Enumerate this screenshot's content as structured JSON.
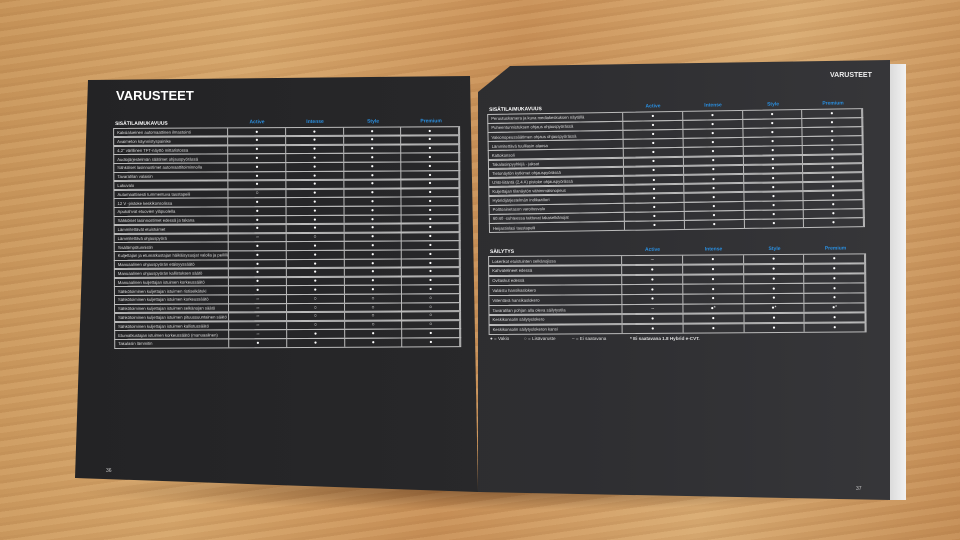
{
  "left_page": {
    "title": "VARUSTEET",
    "page_number": "36",
    "table": {
      "section": "SISÄTILA/MUKAVUUS",
      "columns": [
        "Active",
        "Intense",
        "Style",
        "Premium"
      ],
      "rows": [
        {
          "label": "Kaksialueinen automaattinen ilmastointi",
          "values": [
            "●",
            "●",
            "●",
            "●"
          ]
        },
        {
          "label": "Avaimeton käynnistyspainike",
          "values": [
            "●",
            "●",
            "●",
            "●"
          ]
        },
        {
          "label": "4,2\" värillinen TFT-näyttö mittaristossa",
          "values": [
            "●",
            "●",
            "●",
            "●"
          ]
        },
        {
          "label": "Audiojärjestelmän säätimet ohjauspyörässä",
          "values": [
            "●",
            "●",
            "●",
            "●"
          ]
        },
        {
          "label": "Sähköiset lasinnostimet automaattitoiminnolla",
          "values": [
            "●",
            "●",
            "●",
            "●"
          ]
        },
        {
          "label": "Tavaratilan valaisin",
          "values": [
            "●",
            "●",
            "●",
            "●"
          ]
        },
        {
          "label": "Lukuvalo",
          "values": [
            "●",
            "●",
            "●",
            "●"
          ]
        },
        {
          "label": "Automaattisesti tummentuva taustapeili",
          "values": [
            "○",
            "●",
            "●",
            "●"
          ]
        },
        {
          "label": "12 V -pistoke keskikonsolissa",
          "values": [
            "●",
            "●",
            "●",
            "●"
          ]
        },
        {
          "label": "Apukahvat etuovien yläpuolella",
          "values": [
            "●",
            "●",
            "●",
            "●"
          ]
        },
        {
          "label": "Sähköiset lasinnostimet edessä ja takana",
          "values": [
            "●",
            "●",
            "●",
            "●"
          ]
        },
        {
          "label": "Lämmitettävät etuistuimet",
          "values": [
            "●",
            "●",
            "●",
            "●"
          ]
        },
        {
          "label": "Lämmitettävä ohjauspyörä",
          "values": [
            "–",
            "○",
            "●",
            "●"
          ]
        },
        {
          "label": "Sisälämpötunnistin",
          "values": [
            "●",
            "●",
            "●",
            "●"
          ]
        },
        {
          "label": "Kuljettajan ja etumatkustajan häikäisysuojat valolla ja peilillä",
          "values": [
            "●",
            "●",
            "●",
            "●"
          ]
        },
        {
          "label": "Manuaalinen ohjauspyörän etäisyyssäätö",
          "values": [
            "●",
            "●",
            "●",
            "●"
          ]
        },
        {
          "label": "Manuaalinen ohjauspyörän kallistuksen säätö",
          "values": [
            "●",
            "●",
            "●",
            "●"
          ]
        },
        {
          "label": "Manuaalinen kuljettajan istuimen korkeussäätö",
          "values": [
            "●",
            "●",
            "●",
            "●"
          ]
        },
        {
          "label": "Sähkötoiminen kuljettajan istuimen ristiselkätuki",
          "values": [
            "●",
            "●",
            "●",
            "●"
          ]
        },
        {
          "label": "Sähkötoiminen kuljettajan istuimen korkeussäätö",
          "values": [
            "–",
            "○",
            "○",
            "○"
          ]
        },
        {
          "label": "Sähkötoiminen kuljettajan istuimen selkänojan säätö",
          "values": [
            "–",
            "○",
            "○",
            "○"
          ]
        },
        {
          "label": "Sähkötoiminen kuljettajan istuimen pituussuuntainen säätö",
          "values": [
            "–",
            "○",
            "○",
            "○"
          ]
        },
        {
          "label": "Sähkötoiminen kuljettajan istuimen kallistussäätö",
          "values": [
            "–",
            "○",
            "○",
            "○"
          ]
        },
        {
          "label": "Etumatkustajan istuimen korkeussäätö (manuaalinen)",
          "values": [
            "–",
            "●",
            "●",
            "●"
          ]
        },
        {
          "label": "Takalasin lämmitin",
          "values": [
            "●",
            "●",
            "●",
            "●"
          ]
        }
      ]
    }
  },
  "right_page": {
    "title": "VARUSTEET",
    "page_number": "37",
    "table1": {
      "section": "SISÄTILA/MUKAVUUS",
      "columns": [
        "Active",
        "Intense",
        "Style",
        "Premium"
      ],
      "rows": [
        {
          "label": "Peruutuskamera ja kuva mediakeskuksen näytöllä",
          "values": [
            "●",
            "●",
            "●",
            "●"
          ]
        },
        {
          "label": "Puheentunnistuksen ohjaus ohjauspyörässä",
          "values": [
            "●",
            "●",
            "●",
            "●"
          ]
        },
        {
          "label": "Vakionopeussäätimen ohjaus ohjauspyörässä",
          "values": [
            "●",
            "●",
            "●",
            "●"
          ]
        },
        {
          "label": "Lämmitettävä tuulilasin alaosa",
          "values": [
            "●",
            "●",
            "●",
            "●"
          ]
        },
        {
          "label": "Kattokonsoli",
          "values": [
            "●",
            "●",
            "●",
            "●"
          ]
        },
        {
          "label": "Takalasinpyyhkijä - jaksot",
          "values": [
            "●",
            "●",
            "●",
            "●"
          ]
        },
        {
          "label": "Tietonäytön kytkimet ohjauspyörässä",
          "values": [
            "●",
            "●",
            "●",
            "●"
          ]
        },
        {
          "label": "USB-liitäntä (2,4 A) pistoke ohjauspyörässä",
          "values": [
            "●",
            "●",
            "●",
            "●"
          ]
        },
        {
          "label": "Kuljettajan tilanäytön vähimmäisnopeus",
          "values": [
            "●",
            "●",
            "●",
            "●"
          ]
        },
        {
          "label": "Hybridijärjestelmän indikaattori",
          "values": [
            "●",
            "●",
            "●",
            "●"
          ]
        },
        {
          "label": "Polttoainetason varoitusvalo",
          "values": [
            "●",
            "●",
            "●",
            "●"
          ]
        },
        {
          "label": "60:40 -suhteessa taittuvat takaselkänojat",
          "values": [
            "●",
            "●",
            "●",
            "●"
          ]
        },
        {
          "label": "Heijastinlasi taustapeili",
          "values": [
            "●",
            "●",
            "●",
            "●"
          ]
        }
      ]
    },
    "table2": {
      "section": "SÄILYTYS",
      "columns": [
        "Active",
        "Intense",
        "Style",
        "Premium"
      ],
      "rows": [
        {
          "label": "Lokerikot etuistuinten selkänojissa",
          "values": [
            "–",
            "●",
            "●",
            "●"
          ]
        },
        {
          "label": "Kahvatelineet edessä",
          "values": [
            "●",
            "●",
            "●",
            "●"
          ]
        },
        {
          "label": "Ovitaskut edessä",
          "values": [
            "●",
            "●",
            "●",
            "●"
          ]
        },
        {
          "label": "Valaistu hansikaslokero",
          "values": [
            "●",
            "●",
            "●",
            "●"
          ]
        },
        {
          "label": "Viilentävä hansikaslokero",
          "values": [
            "●",
            "●",
            "●",
            "●"
          ]
        },
        {
          "label": "Tavaratilan pohjan alla oleva säilytystila",
          "values": [
            "–",
            "●*",
            "●*",
            "●*"
          ]
        },
        {
          "label": "Keskikonsolin säilytyslokero",
          "values": [
            "●",
            "●",
            "●",
            "●"
          ]
        },
        {
          "label": "Keskikonsolin säilytyslokeron kansi",
          "values": [
            "●",
            "●",
            "●",
            "●"
          ]
        }
      ]
    },
    "legend": {
      "standard": "● = Vakio",
      "optional": "○ = Lisävaruste",
      "unavailable": "– = Ei saatavana",
      "footnote": "* Ei saatavana 1.8 Hybrid e-CVT."
    }
  },
  "colors": {
    "column_header": "#2a8fe0",
    "page": "#2a2a2c",
    "background_wood": "#d0a066"
  }
}
